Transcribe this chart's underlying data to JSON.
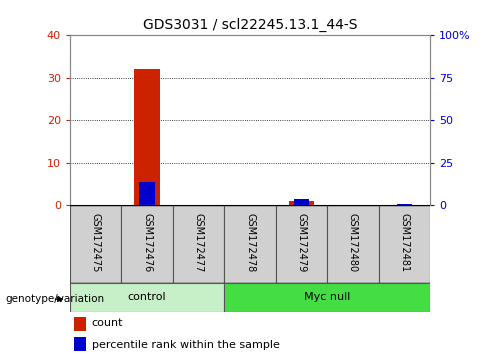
{
  "title": "GDS3031 / scl22245.13.1_44-S",
  "samples": [
    "GSM172475",
    "GSM172476",
    "GSM172477",
    "GSM172478",
    "GSM172479",
    "GSM172480",
    "GSM172481"
  ],
  "counts": [
    0,
    32,
    0,
    0,
    1,
    0,
    0
  ],
  "percentile_ranks": [
    0,
    14,
    0,
    0,
    3.5,
    0,
    1
  ],
  "ylim_left": [
    0,
    40
  ],
  "ylim_right": [
    0,
    100
  ],
  "yticks_left": [
    0,
    10,
    20,
    30,
    40
  ],
  "yticks_right": [
    0,
    25,
    50,
    75,
    100
  ],
  "count_color": "#CC2200",
  "percentile_color": "#0000CC",
  "left_tick_color": "#CC2200",
  "right_tick_color": "#0000CC",
  "ctrl_color": "#c8f0c8",
  "myc_color": "#44dd44",
  "sample_box_color": "#d0d0d0",
  "genotype_label": "genotype/variation",
  "legend_count": "count",
  "legend_percentile": "percentile rank within the sample",
  "ctrl_n": 3,
  "myc_n": 4
}
